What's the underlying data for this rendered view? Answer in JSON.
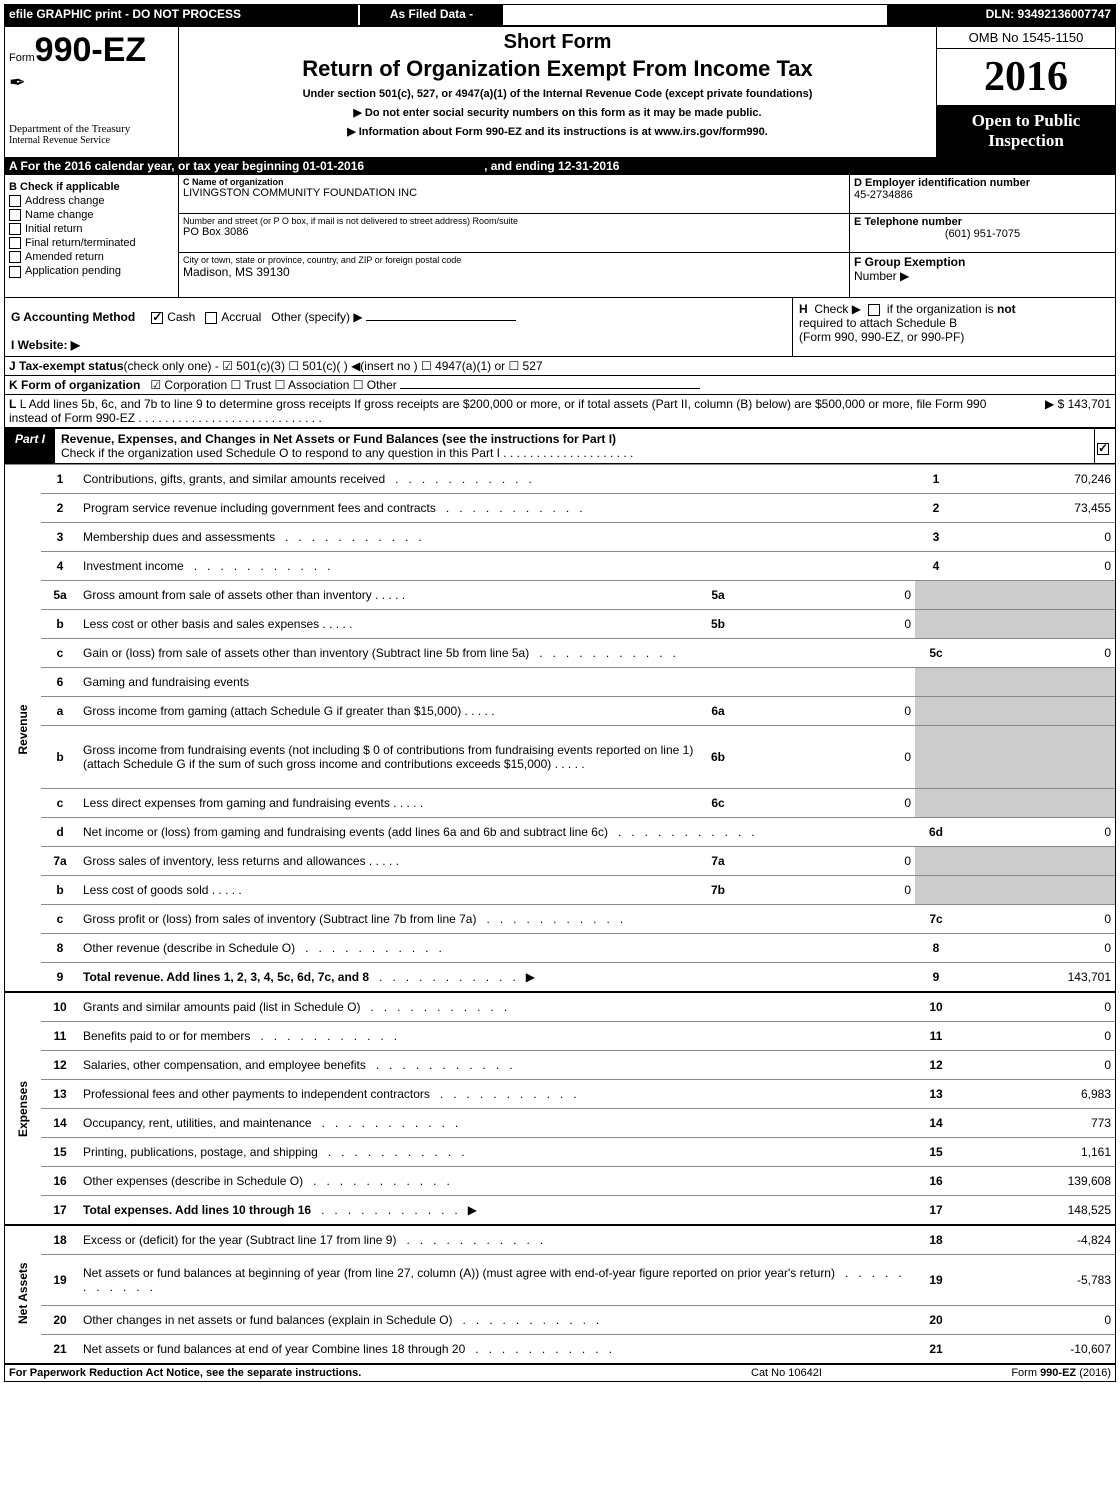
{
  "topbar": {
    "left": "efile GRAPHIC print - DO NOT PROCESS",
    "mid": "As Filed Data -",
    "right": "DLN: 93492136007747"
  },
  "header": {
    "form_label": "Form",
    "form_code": "990-EZ",
    "dept1": "Department of the Treasury",
    "dept2": "Internal Revenue Service",
    "short_form": "Short Form",
    "main_title": "Return of Organization Exempt From Income Tax",
    "sub1": "Under section 501(c), 527, or 4947(a)(1) of the Internal Revenue Code (except private foundations)",
    "sub2": "▶ Do not enter social security numbers on this form as it may be made public.",
    "sub3": "▶ Information about Form 990-EZ and its instructions is at www.irs.gov/form990.",
    "omb": "OMB No 1545-1150",
    "year": "2016",
    "open1": "Open to Public",
    "open2": "Inspection"
  },
  "sectA": {
    "text": "A  For the 2016 calendar year, or tax year beginning 01-01-2016",
    "end": ", and ending 12-31-2016"
  },
  "entity": {
    "B_label": "B  Check if applicable",
    "checks": [
      "Address change",
      "Name change",
      "Initial return",
      "Final return/terminated",
      "Amended return",
      "Application pending"
    ],
    "C_label": "C Name of organization",
    "C_val": "LIVINGSTON COMMUNITY FOUNDATION INC",
    "street_label": "Number and street (or P O box, if mail is not delivered to street address)  Room/suite",
    "street_val": "PO Box 3086",
    "city_label": "City or town, state or province, country, and ZIP or foreign postal code",
    "city_val": "Madison, MS  39130",
    "D_label": "D Employer identification number",
    "D_val": "45-2734886",
    "E_label": "E Telephone number",
    "E_val": "(601) 951-7075",
    "F_label": "F Group Exemption",
    "F_label2": "Number   ▶"
  },
  "G": {
    "label": "G Accounting Method",
    "cash": "Cash",
    "accrual": "Accrual",
    "other": "Other (specify) ▶"
  },
  "H": {
    "text1": "H   Check ▶        if the organization is not",
    "text2": "required to attach Schedule B",
    "text3": "(Form 990, 990-EZ, or 990-PF)"
  },
  "I": {
    "label": "I Website: ▶"
  },
  "J": {
    "label": "J Tax-exempt status",
    "rest": "(check only one) -  ☑ 501(c)(3)      ☐ 501(c)(   ) ◀(insert no ) ☐ 4947(a)(1) or  ☐ 527"
  },
  "K": {
    "label": "K Form of organization",
    "rest": "☑ Corporation   ☐ Trust   ☐ Association   ☐ Other"
  },
  "L": {
    "text": "L Add lines 5b, 6c, and 7b to line 9 to determine gross receipts  If gross receipts are $200,000 or more, or if total assets (Part II, column (B) below) are $500,000 or more, file Form 990 instead of Form 990-EZ",
    "amount": "▶ $ 143,701"
  },
  "partI": {
    "tag": "Part I",
    "title": "Revenue, Expenses, and Changes in Net Assets or Fund Balances (see the instructions for Part I)",
    "sub": "Check if the organization used Schedule O to respond to any question in this Part I"
  },
  "sections": {
    "revenue": "Revenue",
    "expenses": "Expenses",
    "netassets": "Net Assets"
  },
  "lines": [
    {
      "sect": "revenue",
      "n": "1",
      "desc": "Contributions, gifts, grants, and similar amounts received",
      "ref": "1",
      "val": "70,246"
    },
    {
      "sect": "revenue",
      "n": "2",
      "desc": "Program service revenue including government fees and contracts",
      "ref": "2",
      "val": "73,455"
    },
    {
      "sect": "revenue",
      "n": "3",
      "desc": "Membership dues and assessments",
      "ref": "3",
      "val": "0"
    },
    {
      "sect": "revenue",
      "n": "4",
      "desc": "Investment income",
      "ref": "4",
      "val": "0"
    },
    {
      "sect": "revenue",
      "n": "5a",
      "desc": "Gross amount from sale of assets other than inventory",
      "sub_ref": "5a",
      "sub_val": "0",
      "grey": true
    },
    {
      "sect": "revenue",
      "n": "b",
      "desc": "Less  cost or other basis and sales expenses",
      "sub_ref": "5b",
      "sub_val": "0",
      "grey": true
    },
    {
      "sect": "revenue",
      "n": "c",
      "desc": "Gain or (loss) from sale of assets other than inventory (Subtract line 5b from line 5a)",
      "ref": "5c",
      "val": "0"
    },
    {
      "sect": "revenue",
      "n": "6",
      "desc": "Gaming and fundraising events",
      "grey": true,
      "noref": true
    },
    {
      "sect": "revenue",
      "n": "a",
      "desc": "Gross income from gaming (attach Schedule G if greater than $15,000)",
      "sub_ref": "6a",
      "sub_val": "0",
      "grey": true
    },
    {
      "sect": "revenue",
      "n": "b",
      "desc": "Gross income from fundraising events (not including $  0            of contributions from fundraising events reported on line 1) (attach Schedule G if the sum of such gross income and contributions exceeds $15,000)",
      "sub_ref": "6b",
      "sub_val": "0",
      "grey": true,
      "tall": true
    },
    {
      "sect": "revenue",
      "n": "c",
      "desc": "Less  direct expenses from gaming and fundraising events",
      "sub_ref": "6c",
      "sub_val": "0",
      "grey": true
    },
    {
      "sect": "revenue",
      "n": "d",
      "desc": "Net income or (loss) from gaming and fundraising events (add lines 6a and 6b and subtract line 6c)",
      "ref": "6d",
      "val": "0"
    },
    {
      "sect": "revenue",
      "n": "7a",
      "desc": "Gross sales of inventory, less returns and allowances",
      "sub_ref": "7a",
      "sub_val": "0",
      "grey": true
    },
    {
      "sect": "revenue",
      "n": "b",
      "desc": "Less  cost of goods sold",
      "sub_ref": "7b",
      "sub_val": "0",
      "grey": true
    },
    {
      "sect": "revenue",
      "n": "c",
      "desc": "Gross profit or (loss) from sales of inventory (Subtract line 7b from line 7a)",
      "ref": "7c",
      "val": "0"
    },
    {
      "sect": "revenue",
      "n": "8",
      "desc": "Other revenue (describe in Schedule O)",
      "ref": "8",
      "val": "0"
    },
    {
      "sect": "revenue",
      "n": "9",
      "desc": "Total revenue. Add lines 1, 2, 3, 4, 5c, 6d, 7c, and 8",
      "ref": "9",
      "val": "143,701",
      "bold": true,
      "arrow": true
    },
    {
      "sect": "expenses",
      "n": "10",
      "desc": "Grants and similar amounts paid (list in Schedule O)",
      "ref": "10",
      "val": "0"
    },
    {
      "sect": "expenses",
      "n": "11",
      "desc": "Benefits paid to or for members",
      "ref": "11",
      "val": "0"
    },
    {
      "sect": "expenses",
      "n": "12",
      "desc": "Salaries, other compensation, and employee benefits",
      "ref": "12",
      "val": "0"
    },
    {
      "sect": "expenses",
      "n": "13",
      "desc": "Professional fees and other payments to independent contractors",
      "ref": "13",
      "val": "6,983"
    },
    {
      "sect": "expenses",
      "n": "14",
      "desc": "Occupancy, rent, utilities, and maintenance",
      "ref": "14",
      "val": "773"
    },
    {
      "sect": "expenses",
      "n": "15",
      "desc": "Printing, publications, postage, and shipping",
      "ref": "15",
      "val": "1,161"
    },
    {
      "sect": "expenses",
      "n": "16",
      "desc": "Other expenses (describe in Schedule O)",
      "ref": "16",
      "val": "139,608"
    },
    {
      "sect": "expenses",
      "n": "17",
      "desc": "Total expenses. Add lines 10 through 16",
      "ref": "17",
      "val": "148,525",
      "bold": true,
      "arrow": true
    },
    {
      "sect": "netassets",
      "n": "18",
      "desc": "Excess or (deficit) for the year (Subtract line 17 from line 9)",
      "ref": "18",
      "val": "-4,824"
    },
    {
      "sect": "netassets",
      "n": "19",
      "desc": "Net assets or fund balances at beginning of year (from line 27, column (A)) (must agree with end-of-year figure reported on prior year's return)",
      "ref": "19",
      "val": "-5,783",
      "tall": true
    },
    {
      "sect": "netassets",
      "n": "20",
      "desc": "Other changes in net assets or fund balances (explain in Schedule O)",
      "ref": "20",
      "val": "0"
    },
    {
      "sect": "netassets",
      "n": "21",
      "desc": "Net assets or fund balances at end of year  Combine lines 18 through 20",
      "ref": "21",
      "val": "-10,607"
    }
  ],
  "footer": {
    "left": "For Paperwork Reduction Act Notice, see the separate instructions.",
    "mid": "Cat No  10642I",
    "right": "Form 990-EZ (2016)"
  }
}
